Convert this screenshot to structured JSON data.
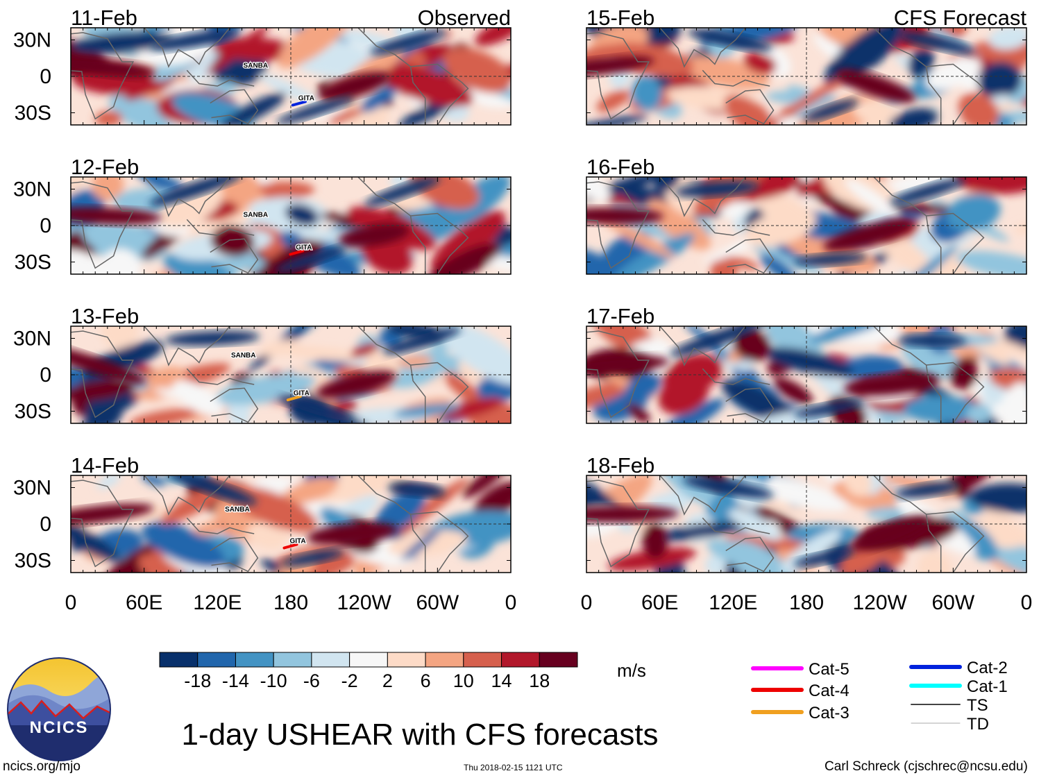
{
  "chart_data": {
    "type": "heatmap",
    "title": "1-day USHEAR with CFS forecasts",
    "units": "m/s",
    "column_titles": [
      "Observed",
      "CFS Forecast"
    ],
    "panels": [
      {
        "date": "11-Feb",
        "group": "Observed",
        "storms": [
          {
            "name": "SANBA",
            "lon": 140,
            "lat": 5
          },
          {
            "name": "GITA",
            "lon": 185,
            "lat": -22,
            "category": "Cat-2"
          }
        ]
      },
      {
        "date": "12-Feb",
        "group": "Observed",
        "storms": [
          {
            "name": "SANBA",
            "lon": 140,
            "lat": 5
          },
          {
            "name": "GITA",
            "lon": 183,
            "lat": -22,
            "category": "Cat-4"
          }
        ]
      },
      {
        "date": "13-Feb",
        "group": "Observed",
        "storms": [
          {
            "name": "SANBA",
            "lon": 130,
            "lat": 12
          },
          {
            "name": "GITA",
            "lon": 181,
            "lat": -19,
            "category": "Cat-3"
          }
        ]
      },
      {
        "date": "14-Feb",
        "group": "Observed",
        "storms": [
          {
            "name": "SANBA",
            "lon": 125,
            "lat": 8
          },
          {
            "name": "GITA",
            "lon": 178,
            "lat": -18,
            "category": "Cat-4"
          }
        ]
      },
      {
        "date": "15-Feb",
        "group": "CFS Forecast",
        "storms": []
      },
      {
        "date": "16-Feb",
        "group": "CFS Forecast",
        "storms": []
      },
      {
        "date": "17-Feb",
        "group": "CFS Forecast",
        "storms": []
      },
      {
        "date": "18-Feb",
        "group": "CFS Forecast",
        "storms": []
      }
    ],
    "x_ticks": [
      "0",
      "60E",
      "120E",
      "180",
      "120W",
      "60W",
      "0"
    ],
    "y_ticks": [
      "30N",
      "0",
      "30S"
    ],
    "xlim": [
      0,
      360
    ],
    "ylim": [
      -40,
      40
    ],
    "colorbar": {
      "levels": [
        "-18",
        "-14",
        "-10",
        "-6",
        "-2",
        "2",
        "6",
        "10",
        "14",
        "18"
      ],
      "colors": [
        "#08306b",
        "#2166ac",
        "#4393c3",
        "#92c5de",
        "#d1e5f0",
        "#f7f7f7",
        "#fddbc7",
        "#f4a582",
        "#d6604d",
        "#b2182b",
        "#67001f"
      ]
    },
    "legend": [
      {
        "label": "Cat-5",
        "color": "#ff00ff"
      },
      {
        "label": "Cat-4",
        "color": "#ee0000"
      },
      {
        "label": "Cat-3",
        "color": "#f0a020"
      },
      {
        "label": "Cat-2",
        "color": "#0022dd"
      },
      {
        "label": "Cat-1",
        "color": "#00ffff"
      },
      {
        "label": "TS",
        "color": "#444444"
      },
      {
        "label": "TD",
        "color": "#aaaaaa"
      }
    ]
  },
  "footer": {
    "site": "ncics.org/mjo",
    "timestamp": "Thu 2018-02-15 1121 UTC",
    "author": "Carl Schreck (cjschrec@ncsu.edu)",
    "logo_text": "NCICS"
  }
}
